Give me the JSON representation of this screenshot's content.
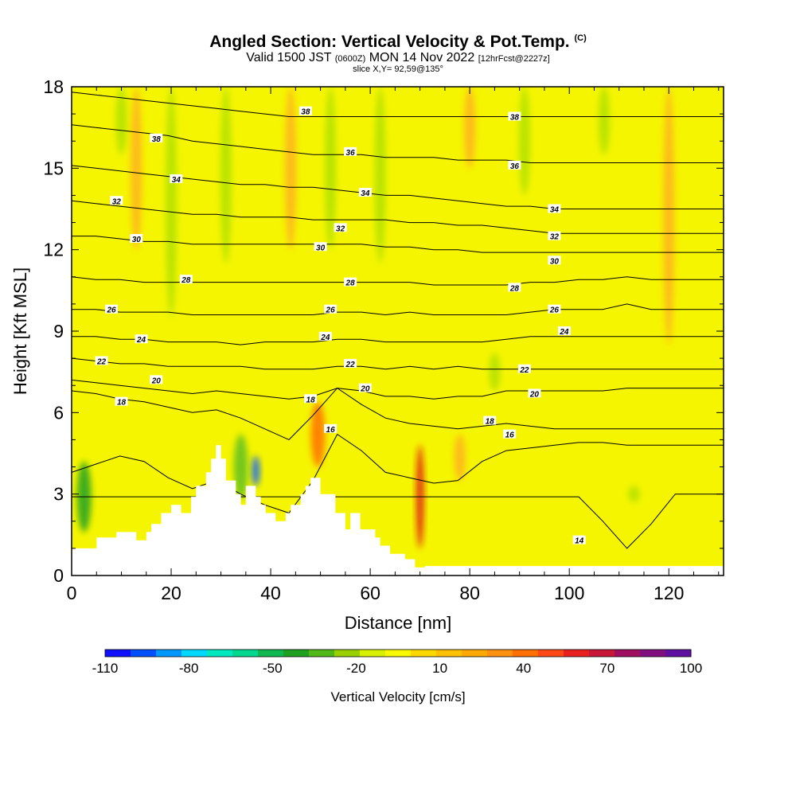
{
  "title": "Angled Section: Vertical Velocity & Pot.Temp.",
  "title_mark": "(C)",
  "subtitle_valid": "Valid 1500 JST",
  "subtitle_utc": "(0600Z)",
  "subtitle_date": "MON 14 Nov 2022",
  "subtitle_fcst": "[12hrFcst@2227z]",
  "slice_text": "slice X,Y= 92,59@135°",
  "colors": {
    "background_field": "#f5f500",
    "updraft_weak": "#ffd000",
    "updraft_mod": "#ffb020",
    "updraft_strong": "#ff7000",
    "updraft_max": "#e01818",
    "downdraft_weak": "#b0e000",
    "downdraft_mod": "#60c020",
    "downdraft_strong": "#20a020",
    "downdraft_max": "#1060ff",
    "terrain": "#ffffff",
    "contour": "#000000"
  },
  "chart_data": {
    "type": "heatmap",
    "xlabel": "Distance [nm]",
    "ylabel": "Height [Kft MSL]",
    "xlim": [
      0,
      131
    ],
    "ylim": [
      0,
      18
    ],
    "x_ticks": [
      0,
      20,
      40,
      60,
      80,
      100,
      120
    ],
    "x_tick_labels": [
      "0",
      "20",
      "40",
      "60",
      "80",
      "100",
      "120"
    ],
    "y_ticks": [
      0,
      3,
      6,
      9,
      12,
      15,
      18
    ],
    "y_tick_labels": [
      "0",
      "3",
      "6",
      "9",
      "12",
      "15",
      "18"
    ],
    "colorbar": {
      "title": "Vertical Velocity [cm/s]",
      "labels": [
        "-110",
        "-80",
        "-50",
        "-20",
        "10",
        "40",
        "70",
        "100"
      ],
      "label_values": [
        -110,
        -80,
        -50,
        -20,
        10,
        40,
        70,
        100
      ],
      "colors": [
        "#1010ff",
        "#0050ff",
        "#0098ff",
        "#00d8ff",
        "#00e8c0",
        "#00d890",
        "#10b850",
        "#20a020",
        "#50b818",
        "#98d000",
        "#d8f000",
        "#f8f800",
        "#ffd800",
        "#ffc000",
        "#ffa800",
        "#ff9010",
        "#ff7000",
        "#ff4818",
        "#e82020",
        "#c81838",
        "#a01060",
        "#801080",
        "#6010a0"
      ]
    },
    "terrain": {
      "x": [
        0,
        5,
        5,
        9,
        9,
        13,
        13,
        15,
        15,
        16,
        16,
        18,
        18,
        20,
        20,
        22,
        22,
        24,
        24,
        25,
        25,
        27,
        27,
        28,
        28,
        29,
        29,
        30,
        30,
        31,
        31,
        33,
        33,
        34,
        34,
        35,
        35,
        37,
        37,
        38,
        38,
        39,
        39,
        41,
        41,
        43,
        43,
        44,
        44,
        46,
        46,
        47,
        47,
        48,
        48,
        50,
        50,
        53,
        53,
        55,
        55,
        56,
        56,
        58,
        58,
        61,
        61,
        62,
        62,
        64,
        64,
        67,
        67,
        69,
        69,
        71,
        71,
        131
      ],
      "y": [
        1.0,
        1.0,
        1.4,
        1.4,
        1.6,
        1.6,
        1.3,
        1.3,
        1.6,
        1.6,
        1.9,
        1.9,
        2.3,
        2.3,
        2.6,
        2.6,
        2.3,
        2.3,
        2.9,
        2.9,
        3.3,
        3.3,
        3.8,
        3.8,
        4.3,
        4.3,
        4.8,
        4.8,
        4.3,
        4.3,
        3.5,
        3.5,
        3.0,
        3.0,
        2.6,
        2.6,
        3.3,
        3.3,
        2.9,
        2.9,
        2.6,
        2.6,
        2.3,
        2.3,
        2.0,
        2.0,
        2.3,
        2.3,
        2.6,
        2.6,
        3.0,
        3.0,
        3.3,
        3.3,
        3.6,
        3.6,
        3.0,
        3.0,
        2.3,
        2.3,
        1.7,
        1.7,
        2.3,
        2.3,
        1.7,
        1.7,
        1.4,
        1.4,
        1.1,
        1.1,
        0.8,
        0.8,
        0.6,
        0.6,
        0.3,
        0.3,
        0.35,
        0.35
      ]
    },
    "features": [
      {
        "kind": "downdraft",
        "x": 37,
        "y0": 3.3,
        "y1": 4.4,
        "value": -110
      },
      {
        "kind": "downdraft",
        "x": 34,
        "y0": 2.8,
        "y1": 5.2,
        "value": -40
      },
      {
        "kind": "downdraft",
        "x": 2.5,
        "y0": 1.6,
        "y1": 4.2,
        "value": -30
      },
      {
        "kind": "updraft",
        "x": 70,
        "y0": 1.0,
        "y1": 4.8,
        "value": 70
      },
      {
        "kind": "updraft",
        "x": 49.5,
        "y0": 4.0,
        "y1": 6.4,
        "value": 50
      },
      {
        "kind": "downdraft",
        "x": 10,
        "y0": 15.5,
        "y1": 18,
        "value": -20
      },
      {
        "kind": "downdraft",
        "x": 20,
        "y0": 9.5,
        "y1": 18,
        "value": -20
      },
      {
        "kind": "downdraft",
        "x": 31,
        "y0": 11.5,
        "y1": 18,
        "value": -20
      },
      {
        "kind": "downdraft",
        "x": 52,
        "y0": 12.0,
        "y1": 18,
        "value": -20
      },
      {
        "kind": "downdraft",
        "x": 62,
        "y0": 11.5,
        "y1": 18,
        "value": -20
      },
      {
        "kind": "downdraft",
        "x": 91,
        "y0": 14.0,
        "y1": 18,
        "value": -20
      },
      {
        "kind": "downdraft",
        "x": 107,
        "y0": 15.5,
        "y1": 18,
        "value": -20
      },
      {
        "kind": "downdraft",
        "x": 85,
        "y0": 6.8,
        "y1": 8.2,
        "value": -20
      },
      {
        "kind": "downdraft",
        "x": 113,
        "y0": 2.7,
        "y1": 3.3,
        "value": -20
      },
      {
        "kind": "updraft",
        "x": 13,
        "y0": 12,
        "y1": 18,
        "value": 20
      },
      {
        "kind": "updraft",
        "x": 44,
        "y0": 12,
        "y1": 18,
        "value": 20
      },
      {
        "kind": "updraft",
        "x": 80,
        "y0": 15,
        "y1": 18,
        "value": 20
      },
      {
        "kind": "updraft",
        "x": 120,
        "y0": 8.5,
        "y1": 18,
        "value": 20
      },
      {
        "kind": "updraft",
        "x": 78,
        "y0": 3.5,
        "y1": 5.2,
        "value": 20
      }
    ],
    "contours": [
      {
        "value": 14,
        "label": "14",
        "y": [
          2.9,
          2.9,
          2.9,
          2.9,
          2.9,
          2.9,
          2.9,
          2.9,
          2.9,
          2.9,
          2.9,
          2.9,
          2.9,
          2.9,
          2.9,
          2.9,
          2.9,
          2.9,
          2.9,
          2.9,
          2.9,
          2.9,
          2.0,
          1.0,
          1.9,
          3.0,
          3.0,
          3.0
        ]
      },
      {
        "value": 16,
        "label": "16",
        "y": [
          3.8,
          4.1,
          4.4,
          4.2,
          3.6,
          3.2,
          3.5,
          3.0,
          2.6,
          2.3,
          3.5,
          5.2,
          4.6,
          3.8,
          3.6,
          3.4,
          3.5,
          4.2,
          4.6,
          4.7,
          4.8,
          4.9,
          4.9,
          4.8,
          4.8,
          4.8,
          4.8,
          4.8
        ]
      },
      {
        "value": 18,
        "label": "18",
        "y": [
          6.8,
          6.7,
          6.5,
          6.4,
          6.2,
          6.0,
          6.1,
          5.8,
          5.4,
          5.0,
          5.9,
          6.9,
          6.3,
          5.8,
          5.6,
          5.5,
          5.4,
          5.5,
          5.6,
          5.5,
          5.4,
          5.4,
          5.4,
          5.4,
          5.4,
          5.4,
          5.4,
          5.4
        ]
      },
      {
        "value": 20,
        "label": "20",
        "y": [
          7.2,
          7.1,
          7.0,
          6.9,
          6.8,
          6.7,
          6.8,
          6.7,
          6.6,
          6.5,
          6.6,
          6.9,
          6.8,
          6.6,
          6.6,
          6.5,
          6.6,
          6.6,
          6.8,
          6.8,
          6.8,
          6.8,
          6.8,
          6.9,
          6.9,
          6.9,
          6.9,
          6.9
        ]
      },
      {
        "value": 22,
        "label": "22",
        "y": [
          8.0,
          7.9,
          7.8,
          7.8,
          7.7,
          7.7,
          7.7,
          7.7,
          7.6,
          7.6,
          7.6,
          7.7,
          7.7,
          7.6,
          7.7,
          7.6,
          7.7,
          7.6,
          7.6,
          7.6,
          7.6,
          7.6,
          7.6,
          7.6,
          7.6,
          7.6,
          7.6,
          7.6
        ]
      },
      {
        "value": 24,
        "label": "24",
        "y": [
          8.8,
          8.8,
          8.7,
          8.7,
          8.6,
          8.6,
          8.6,
          8.5,
          8.6,
          8.6,
          8.6,
          8.7,
          8.7,
          8.6,
          8.6,
          8.6,
          8.6,
          8.6,
          8.7,
          8.8,
          8.8,
          8.8,
          8.8,
          8.8,
          8.8,
          8.8,
          8.8,
          8.8
        ]
      },
      {
        "value": 26,
        "label": "26",
        "y": [
          9.8,
          9.8,
          9.7,
          9.7,
          9.7,
          9.6,
          9.6,
          9.6,
          9.6,
          9.6,
          9.6,
          9.7,
          9.7,
          9.6,
          9.7,
          9.6,
          9.6,
          9.6,
          9.6,
          9.7,
          9.8,
          9.8,
          9.8,
          10.0,
          9.8,
          9.8,
          9.8,
          9.8
        ]
      },
      {
        "value": 28,
        "label": "28",
        "y": [
          11.0,
          10.9,
          10.9,
          10.8,
          10.8,
          10.8,
          10.8,
          10.8,
          10.8,
          10.8,
          10.8,
          10.8,
          10.8,
          10.8,
          10.8,
          10.7,
          10.7,
          10.7,
          10.7,
          10.8,
          10.8,
          10.9,
          10.9,
          11.0,
          10.9,
          10.9,
          10.9,
          10.9
        ]
      },
      {
        "value": 30,
        "label": "30",
        "y": [
          12.5,
          12.5,
          12.4,
          12.3,
          12.3,
          12.2,
          12.2,
          12.2,
          12.2,
          12.2,
          12.2,
          12.2,
          12.2,
          12.1,
          12.1,
          12.0,
          12.0,
          11.9,
          11.9,
          11.9,
          11.9,
          11.9,
          11.9,
          11.9,
          11.9,
          11.9,
          11.9,
          11.9
        ]
      },
      {
        "value": 32,
        "label": "32",
        "y": [
          13.8,
          13.7,
          13.6,
          13.5,
          13.4,
          13.3,
          13.3,
          13.2,
          13.2,
          13.2,
          13.1,
          13.1,
          13.1,
          13.1,
          13.0,
          13.0,
          12.9,
          12.9,
          12.8,
          12.7,
          12.6,
          12.6,
          12.6,
          12.6,
          12.6,
          12.6,
          12.6,
          12.6
        ]
      },
      {
        "value": 34,
        "label": "34",
        "y": [
          15.1,
          15.0,
          14.9,
          14.8,
          14.7,
          14.6,
          14.5,
          14.4,
          14.4,
          14.3,
          14.3,
          14.2,
          14.1,
          14.0,
          14.0,
          13.9,
          13.8,
          13.7,
          13.6,
          13.6,
          13.5,
          13.5,
          13.5,
          13.5,
          13.5,
          13.5,
          13.5,
          13.5
        ]
      },
      {
        "value": 36,
        "label": "36",
        "y": [
          16.6,
          16.5,
          16.4,
          16.3,
          16.2,
          16.0,
          15.9,
          15.8,
          15.7,
          15.6,
          15.5,
          15.5,
          15.5,
          15.4,
          15.4,
          15.4,
          15.3,
          15.3,
          15.3,
          15.2,
          15.2,
          15.2,
          15.2,
          15.2,
          15.2,
          15.2,
          15.2,
          15.2
        ]
      },
      {
        "value": 38,
        "label": "38",
        "y": [
          17.8,
          17.7,
          17.6,
          17.5,
          17.4,
          17.3,
          17.2,
          17.1,
          17.0,
          16.9,
          16.9,
          16.9,
          16.9,
          16.9,
          16.9,
          16.9,
          16.9,
          16.9,
          16.9,
          16.9,
          16.9,
          16.9,
          16.9,
          16.9,
          16.9,
          16.9,
          16.9,
          16.9
        ]
      }
    ],
    "contour_labels": [
      {
        "text": "38",
        "x": 47,
        "y": 17.1
      },
      {
        "text": "38",
        "x": 17,
        "y": 16.1
      },
      {
        "text": "38",
        "x": 89,
        "y": 16.9
      },
      {
        "text": "36",
        "x": 56,
        "y": 15.6
      },
      {
        "text": "36",
        "x": 89,
        "y": 15.1
      },
      {
        "text": "34",
        "x": 21,
        "y": 14.6
      },
      {
        "text": "34",
        "x": 59,
        "y": 14.1
      },
      {
        "text": "34",
        "x": 97,
        "y": 13.5
      },
      {
        "text": "32",
        "x": 9,
        "y": 13.8
      },
      {
        "text": "32",
        "x": 54,
        "y": 12.8
      },
      {
        "text": "32",
        "x": 97,
        "y": 12.5
      },
      {
        "text": "30",
        "x": 13,
        "y": 12.4
      },
      {
        "text": "30",
        "x": 50,
        "y": 12.1
      },
      {
        "text": "30",
        "x": 97,
        "y": 11.6
      },
      {
        "text": "28",
        "x": 23,
        "y": 10.9
      },
      {
        "text": "28",
        "x": 56,
        "y": 10.8
      },
      {
        "text": "28",
        "x": 89,
        "y": 10.6
      },
      {
        "text": "26",
        "x": 8,
        "y": 9.8
      },
      {
        "text": "26",
        "x": 52,
        "y": 9.8
      },
      {
        "text": "26",
        "x": 97,
        "y": 9.8
      },
      {
        "text": "24",
        "x": 14,
        "y": 8.7
      },
      {
        "text": "24",
        "x": 51,
        "y": 8.8
      },
      {
        "text": "24",
        "x": 99,
        "y": 9.0
      },
      {
        "text": "22",
        "x": 6,
        "y": 7.9
      },
      {
        "text": "22",
        "x": 56,
        "y": 7.8
      },
      {
        "text": "22",
        "x": 91,
        "y": 7.6
      },
      {
        "text": "20",
        "x": 17,
        "y": 7.2
      },
      {
        "text": "20",
        "x": 59,
        "y": 6.9
      },
      {
        "text": "20",
        "x": 93,
        "y": 6.7
      },
      {
        "text": "18",
        "x": 10,
        "y": 6.4
      },
      {
        "text": "18",
        "x": 48,
        "y": 6.5
      },
      {
        "text": "18",
        "x": 84,
        "y": 5.7
      },
      {
        "text": "16",
        "x": 52,
        "y": 5.4
      },
      {
        "text": "16",
        "x": 88,
        "y": 5.2
      },
      {
        "text": "14",
        "x": 102,
        "y": 1.3
      }
    ]
  }
}
